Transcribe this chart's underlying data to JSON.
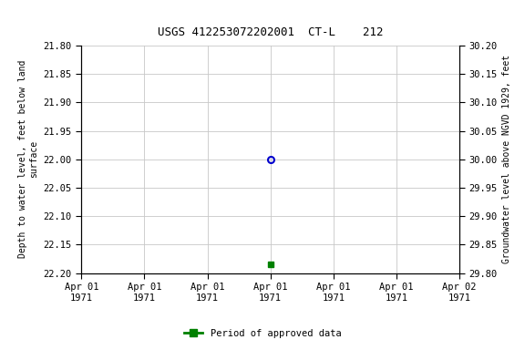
{
  "title": "USGS 412253072202001  CT-L    212",
  "ylabel_left": "Depth to water level, feet below land\nsurface",
  "ylabel_right": "Groundwater level above NGVD 1929, feet",
  "ylim_left": [
    22.2,
    21.8
  ],
  "ylim_right": [
    29.8,
    30.2
  ],
  "yticks_left": [
    21.8,
    21.85,
    21.9,
    21.95,
    22.0,
    22.05,
    22.1,
    22.15,
    22.2
  ],
  "yticks_right": [
    29.8,
    29.85,
    29.9,
    29.95,
    30.0,
    30.05,
    30.1,
    30.15,
    30.2
  ],
  "point_open_x": 3.0,
  "point_open_y": 22.0,
  "point_filled_x": 3.0,
  "point_filled_y": 22.185,
  "open_color": "#0000cc",
  "filled_color": "#008000",
  "legend_label": "Period of approved data",
  "legend_color": "#008000",
  "background_color": "#ffffff",
  "grid_color": "#c8c8c8",
  "title_fontsize": 9,
  "axis_fontsize": 7,
  "tick_fontsize": 7.5,
  "xlabel_dates": [
    "Apr 01\n1971",
    "Apr 01\n1971",
    "Apr 01\n1971",
    "Apr 01\n1971",
    "Apr 01\n1971",
    "Apr 01\n1971",
    "Apr 02\n1971"
  ],
  "xlim": [
    0,
    6
  ],
  "xticks": [
    0,
    1,
    2,
    3,
    4,
    5,
    6
  ]
}
